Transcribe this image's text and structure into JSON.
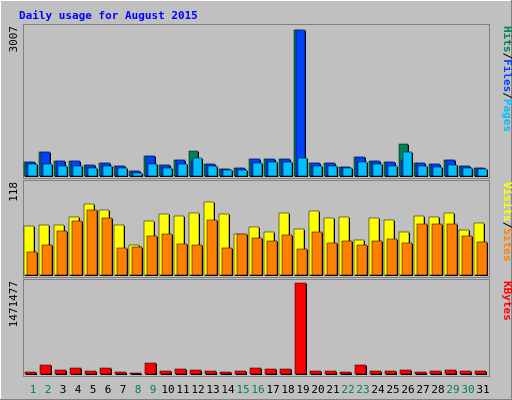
{
  "chart_data": {
    "type": "bar",
    "title": "Daily usage for August 2015",
    "categories": [
      "1",
      "2",
      "3",
      "4",
      "5",
      "6",
      "7",
      "8",
      "9",
      "10",
      "11",
      "12",
      "13",
      "14",
      "15",
      "16",
      "17",
      "18",
      "19",
      "20",
      "21",
      "22",
      "23",
      "24",
      "25",
      "26",
      "27",
      "28",
      "29",
      "30",
      "31"
    ],
    "weekend_days": [
      "1",
      "2",
      "8",
      "9",
      "15",
      "16",
      "22",
      "23",
      "29",
      "30"
    ],
    "panels": [
      {
        "name": "hits",
        "ylabel": "3007",
        "ymax": 3007,
        "legend": [
          {
            "text": "Pages",
            "color": "#00C0FF"
          },
          {
            "text": "Files",
            "color": "#0040FF"
          },
          {
            "text": "Hits",
            "color": "#00805C"
          }
        ],
        "series": [
          {
            "name": "Hits",
            "color": "#00805C",
            "values": [
              280,
              500,
              300,
              300,
              230,
              270,
              200,
              100,
              410,
              220,
              330,
              520,
              250,
              150,
              170,
              350,
              350,
              350,
              2980,
              260,
              260,
              190,
              390,
              300,
              280,
              660,
              270,
              240,
              330,
              210,
              170
            ]
          },
          {
            "name": "Files",
            "color": "#0040FF",
            "values": [
              280,
              500,
              300,
              300,
              230,
              270,
              200,
              100,
              410,
              220,
              330,
              300,
              250,
              150,
              170,
              350,
              350,
              350,
              2980,
              260,
              260,
              190,
              390,
              300,
              280,
              300,
              270,
              240,
              330,
              210,
              170
            ]
          },
          {
            "name": "Pages",
            "color": "#00C0FF",
            "values": [
              240,
              240,
              200,
              200,
              170,
              200,
              160,
              70,
              250,
              170,
              240,
              370,
              200,
              120,
              130,
              270,
              280,
              290,
              370,
              210,
              210,
              160,
              280,
              240,
              210,
              500,
              210,
              190,
              230,
              170,
              150
            ]
          }
        ]
      },
      {
        "name": "visits",
        "ylabel": "118",
        "ymax": 118,
        "legend": [
          {
            "text": "Sites",
            "color": "#FF8000"
          },
          {
            "text": "Visits",
            "color": "#FFFF00"
          }
        ],
        "series": [
          {
            "name": "Visits",
            "color": "#FFFF00",
            "values": [
              63,
              64,
              64,
              75,
              91,
              83,
              64,
              38,
              69,
              78,
              76,
              79,
              94,
              78,
              53,
              61,
              55,
              79,
              59,
              82,
              73,
              75,
              45,
              73,
              71,
              55,
              76,
              74,
              80,
              58,
              67
            ]
          },
          {
            "name": "Sites",
            "color": "#FF8000",
            "values": [
              30,
              38,
              56,
              69,
              83,
              73,
              35,
              36,
              50,
              52,
              40,
              39,
              71,
              35,
              52,
              47,
              43,
              51,
              33,
              55,
              41,
              44,
              39,
              44,
              46,
              41,
              66,
              65,
              65,
              50,
              42
            ]
          }
        ]
      },
      {
        "name": "kbytes",
        "ylabel": "1471477",
        "ymax": 1471477,
        "legend": [
          {
            "text": "KBytes",
            "color": "#FF0000"
          }
        ],
        "series": [
          {
            "name": "KBytes",
            "color": "#FF0000",
            "values": [
              40000,
              140000,
              60000,
              90000,
              55000,
              100000,
              30000,
              10000,
              180000,
              50000,
              75000,
              65000,
              55000,
              40000,
              45000,
              95000,
              80000,
              80000,
              1471477,
              50000,
              45000,
              40000,
              140000,
              45000,
              45000,
              70000,
              35000,
              55000,
              60000,
              55000,
              45000
            ]
          }
        ]
      }
    ]
  }
}
